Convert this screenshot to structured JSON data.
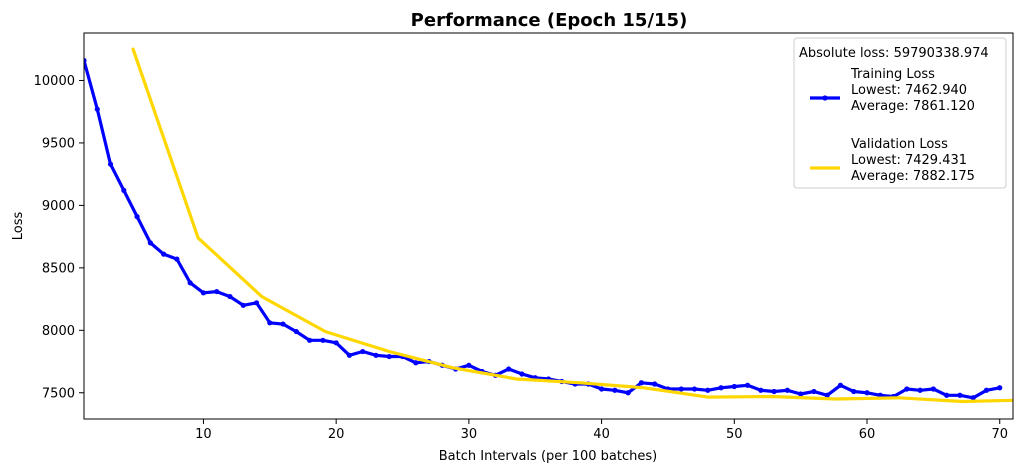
{
  "chart_data": {
    "type": "line",
    "title": "Performance (Epoch 15/15)",
    "xlabel": "Batch Intervals (per 100 batches)",
    "ylabel": "Loss",
    "xlim": [
      1,
      71
    ],
    "ylim": [
      7290,
      10380
    ],
    "xticks": [
      "10",
      "20",
      "30",
      "40",
      "50",
      "60",
      "70"
    ],
    "yticks": [
      "7500",
      "8000",
      "8500",
      "9000",
      "9500",
      "10000"
    ],
    "grid": false,
    "legend_position": "top-right",
    "legend_header": "Absolute loss: 59790338.974",
    "series": [
      {
        "name": "Training Loss",
        "legend_lines": [
          "Training Loss",
          "Lowest: 7462.940",
          "Average: 7861.120"
        ],
        "color": "#0000ff",
        "marker": true,
        "x": [
          1,
          2,
          3,
          4,
          5,
          6,
          7,
          8,
          9,
          10,
          11,
          12,
          13,
          14,
          15,
          16,
          17,
          18,
          19,
          20,
          21,
          22,
          23,
          24,
          25,
          26,
          27,
          28,
          29,
          30,
          31,
          32,
          33,
          34,
          35,
          36,
          37,
          38,
          39,
          40,
          41,
          42,
          43,
          44,
          45,
          46,
          47,
          48,
          49,
          50,
          51,
          52,
          53,
          54,
          55,
          56,
          57,
          58,
          59,
          60,
          61,
          62,
          63,
          64,
          65,
          66,
          67,
          68,
          69,
          70
        ],
        "y": [
          10160,
          9770,
          9330,
          9120,
          8910,
          8700,
          8610,
          8570,
          8380,
          8300,
          8310,
          8270,
          8200,
          8220,
          8060,
          8050,
          7990,
          7920,
          7920,
          7900,
          7800,
          7830,
          7800,
          7790,
          7790,
          7740,
          7750,
          7720,
          7690,
          7720,
          7670,
          7640,
          7690,
          7650,
          7620,
          7610,
          7590,
          7570,
          7570,
          7530,
          7520,
          7500,
          7580,
          7570,
          7530,
          7530,
          7530,
          7520,
          7540,
          7550,
          7560,
          7520,
          7510,
          7520,
          7490,
          7510,
          7480,
          7560,
          7510,
          7500,
          7480,
          7470,
          7530,
          7520,
          7530,
          7480,
          7480,
          7460,
          7520,
          7540
        ]
      },
      {
        "name": "Validation Loss",
        "legend_lines": [
          "Validation Loss",
          "Lowest: 7429.431",
          "Average: 7882.175"
        ],
        "color": "#ffd700",
        "marker": false,
        "x": [
          4.7,
          9.6,
          14.4,
          19.2,
          24.0,
          28.8,
          33.6,
          38.4,
          43.2,
          48.0,
          52.8,
          57.6,
          62.4,
          67.2,
          71
        ],
        "y": [
          10250,
          8740,
          8270,
          7990,
          7830,
          7700,
          7610,
          7580,
          7540,
          7465,
          7470,
          7450,
          7460,
          7430,
          7440
        ]
      }
    ]
  }
}
